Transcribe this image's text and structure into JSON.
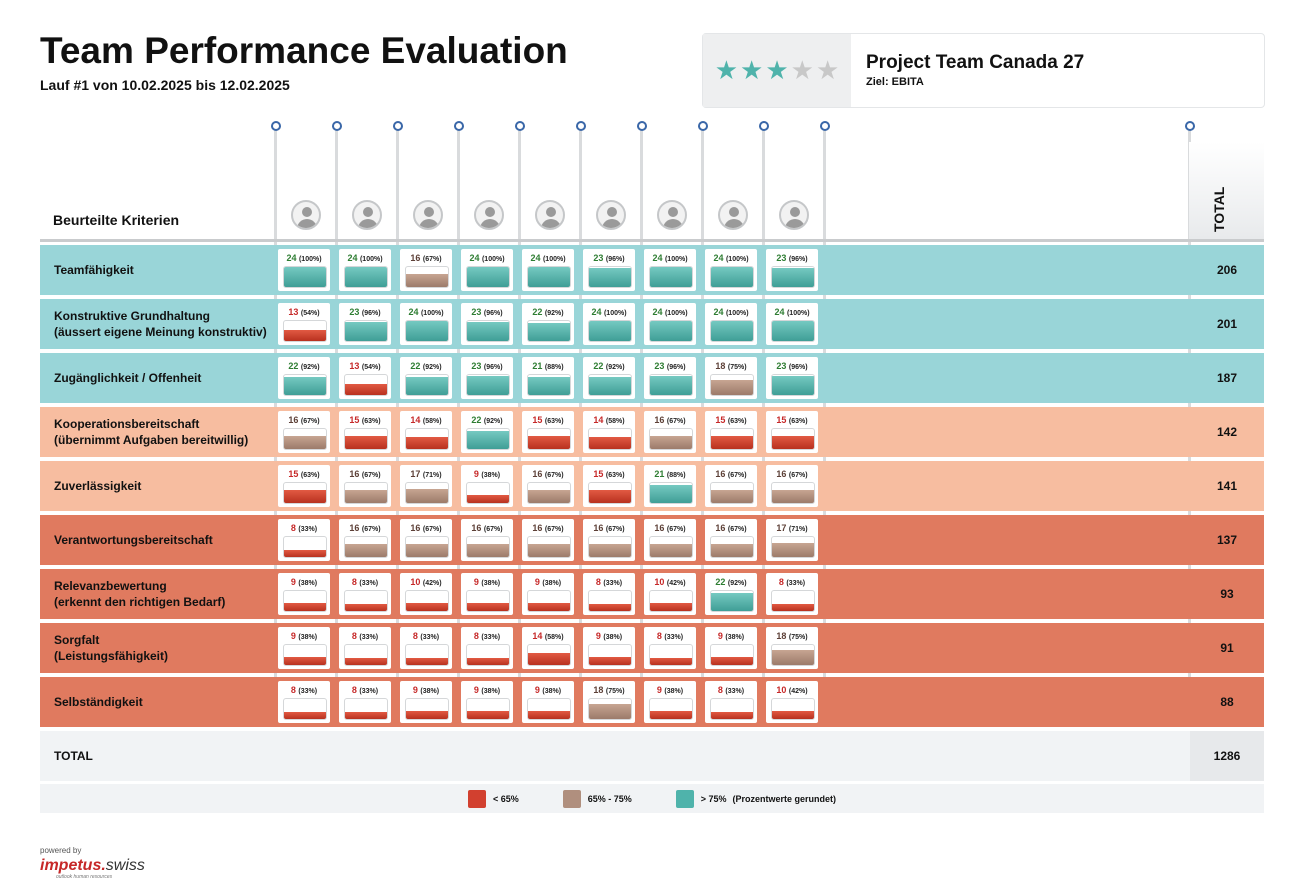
{
  "header": {
    "title": "Team Performance Evaluation",
    "subtitle": "Lauf #1 von 10.02.2025 bis 12.02.2025"
  },
  "project": {
    "rating": 3,
    "rating_max": 5,
    "name": "Project Team Canada 27",
    "goal": "Ziel: EBITA"
  },
  "table": {
    "criteria_header": "Beurteilte Kriterien",
    "total_header": "TOTAL",
    "member_count": 9,
    "rows": [
      {
        "label": [
          "Teamfähigkeit"
        ],
        "band": "teal",
        "total": "206",
        "values": [
          [
            24,
            "100%"
          ],
          [
            24,
            "100%"
          ],
          [
            16,
            "67%"
          ],
          [
            24,
            "100%"
          ],
          [
            24,
            "100%"
          ],
          [
            23,
            "96%"
          ],
          [
            24,
            "100%"
          ],
          [
            24,
            "100%"
          ],
          [
            23,
            "96%"
          ]
        ]
      },
      {
        "label": [
          "Konstruktive Grundhaltung",
          "(äussert eigene Meinung konstruktiv)"
        ],
        "band": "teal",
        "total": "201",
        "values": [
          [
            13,
            "54%"
          ],
          [
            23,
            "96%"
          ],
          [
            24,
            "100%"
          ],
          [
            23,
            "96%"
          ],
          [
            22,
            "92%"
          ],
          [
            24,
            "100%"
          ],
          [
            24,
            "100%"
          ],
          [
            24,
            "100%"
          ],
          [
            24,
            "100%"
          ]
        ]
      },
      {
        "label": [
          "Zugänglichkeit / Offenheit"
        ],
        "band": "teal",
        "total": "187",
        "values": [
          [
            22,
            "92%"
          ],
          [
            13,
            "54%"
          ],
          [
            22,
            "92%"
          ],
          [
            23,
            "96%"
          ],
          [
            21,
            "88%"
          ],
          [
            22,
            "92%"
          ],
          [
            23,
            "96%"
          ],
          [
            18,
            "75%"
          ],
          [
            23,
            "96%"
          ]
        ]
      },
      {
        "label": [
          "Kooperationsbereitschaft",
          "(übernimmt Aufgaben bereitwillig)"
        ],
        "band": "peach",
        "total": "142",
        "values": [
          [
            16,
            "67%"
          ],
          [
            15,
            "63%"
          ],
          [
            14,
            "58%"
          ],
          [
            22,
            "92%"
          ],
          [
            15,
            "63%"
          ],
          [
            14,
            "58%"
          ],
          [
            16,
            "67%"
          ],
          [
            15,
            "63%"
          ],
          [
            15,
            "63%"
          ]
        ]
      },
      {
        "label": [
          "Zuverlässigkeit"
        ],
        "band": "peach",
        "total": "141",
        "values": [
          [
            15,
            "63%"
          ],
          [
            16,
            "67%"
          ],
          [
            17,
            "71%"
          ],
          [
            9,
            "38%"
          ],
          [
            16,
            "67%"
          ],
          [
            15,
            "63%"
          ],
          [
            21,
            "88%"
          ],
          [
            16,
            "67%"
          ],
          [
            16,
            "67%"
          ]
        ]
      },
      {
        "label": [
          "Verantwortungsbereitschaft"
        ],
        "band": "red",
        "total": "137",
        "values": [
          [
            8,
            "33%"
          ],
          [
            16,
            "67%"
          ],
          [
            16,
            "67%"
          ],
          [
            16,
            "67%"
          ],
          [
            16,
            "67%"
          ],
          [
            16,
            "67%"
          ],
          [
            16,
            "67%"
          ],
          [
            16,
            "67%"
          ],
          [
            17,
            "71%"
          ]
        ]
      },
      {
        "label": [
          "Relevanzbewertung",
          "(erkennt den richtigen Bedarf)"
        ],
        "band": "red",
        "total": "93",
        "values": [
          [
            9,
            "38%"
          ],
          [
            8,
            "33%"
          ],
          [
            10,
            "42%"
          ],
          [
            9,
            "38%"
          ],
          [
            9,
            "38%"
          ],
          [
            8,
            "33%"
          ],
          [
            10,
            "42%"
          ],
          [
            22,
            "92%"
          ],
          [
            8,
            "33%"
          ]
        ]
      },
      {
        "label": [
          "Sorgfalt",
          "(Leistungsfähigkeit)"
        ],
        "band": "red",
        "total": "91",
        "values": [
          [
            9,
            "38%"
          ],
          [
            8,
            "33%"
          ],
          [
            8,
            "33%"
          ],
          [
            8,
            "33%"
          ],
          [
            14,
            "58%"
          ],
          [
            9,
            "38%"
          ],
          [
            8,
            "33%"
          ],
          [
            9,
            "38%"
          ],
          [
            18,
            "75%"
          ]
        ]
      },
      {
        "label": [
          "Selbständigkeit"
        ],
        "band": "red",
        "total": "88",
        "values": [
          [
            8,
            "33%"
          ],
          [
            8,
            "33%"
          ],
          [
            9,
            "38%"
          ],
          [
            9,
            "38%"
          ],
          [
            9,
            "38%"
          ],
          [
            18,
            "75%"
          ],
          [
            9,
            "38%"
          ],
          [
            8,
            "33%"
          ],
          [
            10,
            "42%"
          ]
        ]
      }
    ],
    "total_label": "TOTAL",
    "grand_total": "1286"
  },
  "legend": {
    "items": [
      {
        "label": "< 65%",
        "color": "#d2402f"
      },
      {
        "label": "65% - 75%",
        "color": "#b08f7e"
      },
      {
        "label": "> 75%",
        "color": "#4fb3ab"
      }
    ],
    "note": "(Prozentwerte gerundet)"
  },
  "colors": {
    "teal_band": "#99d5d8",
    "peach_band": "#f7bda0",
    "red_band": "#e07a5f",
    "value_green": "#2e7d32",
    "value_red": "#c62828",
    "value_brown": "#5d4037"
  },
  "footer": {
    "powered_by": "powered by",
    "logo_main": "impetus.",
    "logo_tail": "swiss",
    "logo_sub": "outlook human resources"
  }
}
